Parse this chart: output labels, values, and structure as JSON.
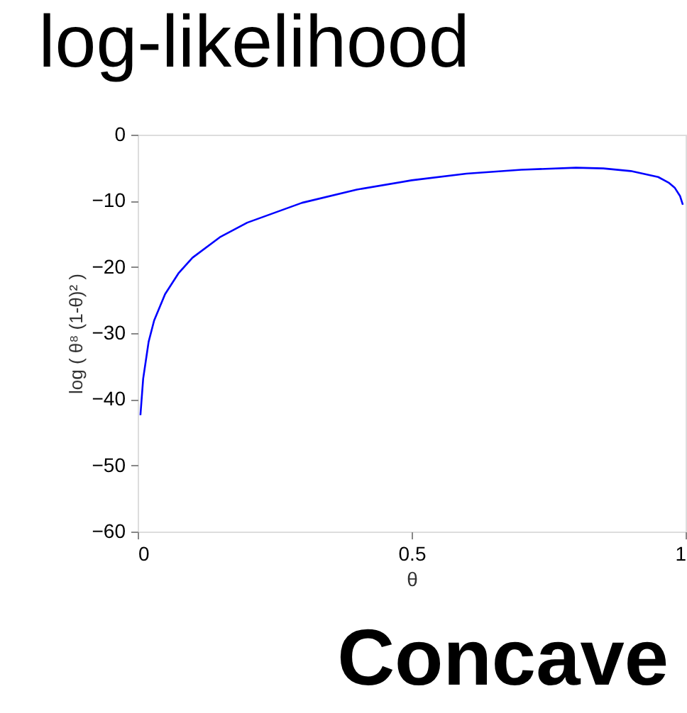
{
  "chart_data": {
    "type": "line",
    "title": "log-likelihood",
    "xlabel": "θ",
    "ylabel": "log ( θ⁸ (1-θ)² )",
    "x": [
      0.005,
      0.01,
      0.02,
      0.03,
      0.05,
      0.075,
      0.1,
      0.15,
      0.2,
      0.3,
      0.4,
      0.5,
      0.6,
      0.7,
      0.8,
      0.85,
      0.9,
      0.95,
      0.97,
      0.98,
      0.99,
      0.995
    ],
    "series": [
      {
        "color": "#0000ff",
        "values": [
          -42.4,
          -36.9,
          -31.3,
          -28.1,
          -24.1,
          -20.9,
          -18.6,
          -15.5,
          -13.3,
          -10.3,
          -8.3,
          -6.9,
          -5.9,
          -5.3,
          -5.0,
          -5.1,
          -5.5,
          -6.4,
          -7.3,
          -8.0,
          -9.3,
          -10.6
        ]
      }
    ],
    "xlim": [
      0,
      1
    ],
    "xticks": [
      {
        "value": 0,
        "label": "0"
      },
      {
        "value": 0.5,
        "label": "0.5"
      },
      {
        "value": 1,
        "label": "1"
      }
    ],
    "ylim": [
      -60,
      0
    ],
    "yticks": [
      -60,
      -50,
      -40,
      -30,
      -20,
      -10,
      0
    ],
    "grid": false,
    "marker": "none",
    "line_style": "solid",
    "annotations": [
      "Concave"
    ]
  }
}
